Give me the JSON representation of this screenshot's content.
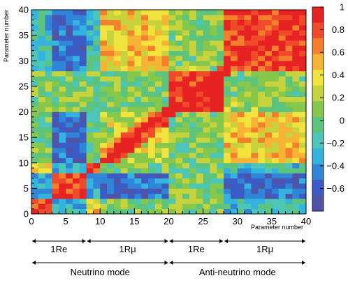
{
  "chart_data": {
    "type": "heatmap",
    "title": "",
    "xlabel": "Parameter number",
    "ylabel": "Parameter number",
    "xlim": [
      0,
      40
    ],
    "ylim": [
      0,
      40
    ],
    "xticks": [
      "0",
      "5",
      "10",
      "15",
      "20",
      "25",
      "30",
      "35",
      "40"
    ],
    "yticks": [
      "0",
      "5",
      "10",
      "15",
      "20",
      "25",
      "30",
      "35",
      "40"
    ],
    "colorbar": {
      "range": [
        -0.8,
        1
      ],
      "ticks": [
        "1",
        "0.8",
        "0.6",
        "0.4",
        "0.2",
        "0",
        "−0.2",
        "−0.4",
        "−0.6"
      ]
    },
    "groups": [
      {
        "label": "1Re",
        "range": [
          0,
          8
        ]
      },
      {
        "label": "1Rμ",
        "range": [
          8,
          20
        ]
      },
      {
        "label": "1Re",
        "range": [
          20,
          28
        ]
      },
      {
        "label": "1Rμ",
        "range": [
          28,
          40
        ]
      }
    ],
    "modes": [
      {
        "label": "Neutrino mode",
        "range": [
          0,
          20
        ]
      },
      {
        "label": "Anti-neutrino mode",
        "range": [
          20,
          40
        ]
      }
    ]
  },
  "palette": [
    "#5054a8",
    "#3b5cc4",
    "#2f86d8",
    "#33b3e0",
    "#4cc6b8",
    "#5cc47c",
    "#86c84c",
    "#c6d33c",
    "#f2e23c",
    "#f7b334",
    "#f47f2c",
    "#ef4a2a",
    "#e62222"
  ]
}
